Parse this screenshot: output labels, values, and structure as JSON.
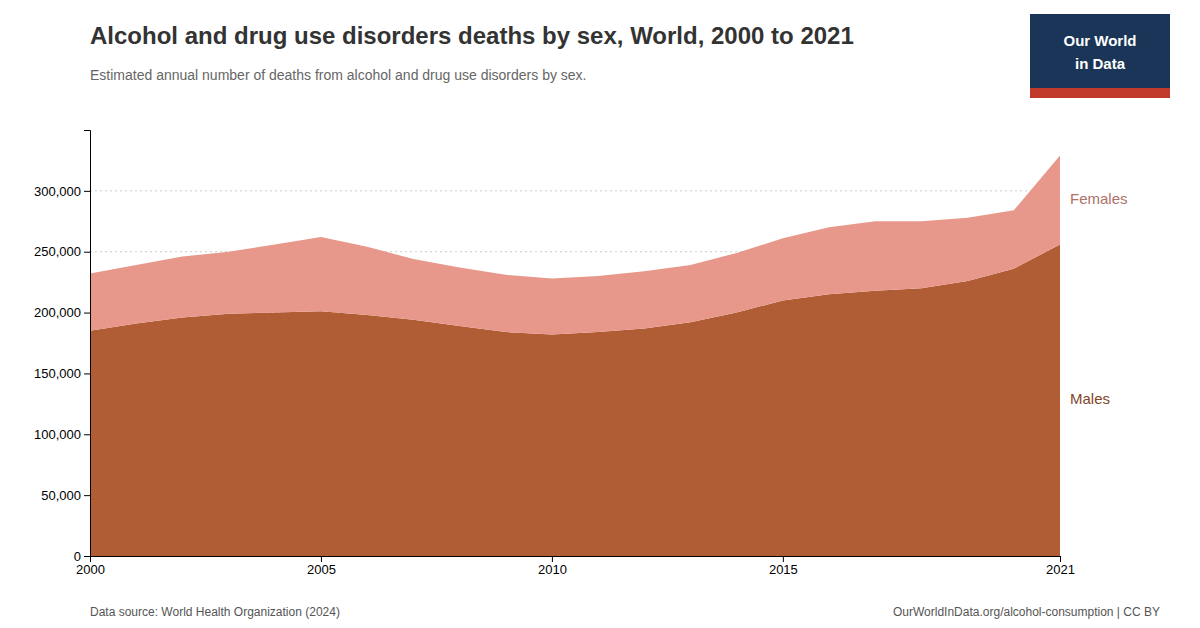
{
  "chart_data": {
    "type": "area",
    "stacked": true,
    "title": "Alcohol and drug use disorders deaths by sex, World, 2000 to 2021",
    "subtitle": "Estimated annual number of deaths from alcohol and drug use disorders by sex.",
    "annotations": [
      "Data source: World Health Organization (2024)",
      "OurWorldInData.org/alcohol-consumption | CC BY",
      "Our World",
      "in Data"
    ],
    "x": [
      2000,
      2001,
      2002,
      2003,
      2004,
      2005,
      2006,
      2007,
      2008,
      2009,
      2010,
      2011,
      2012,
      2013,
      2014,
      2015,
      2016,
      2017,
      2018,
      2019,
      2020,
      2021
    ],
    "series": [
      {
        "name": "Males",
        "color": "#b05c34",
        "values": [
          185000,
          191000,
          196000,
          199000,
          200000,
          201000,
          198000,
          194000,
          189000,
          184000,
          182000,
          184000,
          187000,
          192000,
          200000,
          210000,
          215000,
          218000,
          220000,
          226000,
          236000,
          256000
        ]
      },
      {
        "name": "Females",
        "color": "#e8988a",
        "values": [
          47000,
          48000,
          50000,
          51000,
          56000,
          61000,
          56000,
          50000,
          48000,
          47000,
          46000,
          46000,
          47000,
          47000,
          49000,
          51000,
          55000,
          57000,
          55000,
          52000,
          48000,
          73000
        ]
      }
    ],
    "xlim": [
      2000,
      2021
    ],
    "xticks": [
      2000,
      2005,
      2010,
      2015,
      2021
    ],
    "ylim": [
      0,
      350000
    ],
    "yticks": [
      0,
      {
        "value": 50000,
        "label": "50,000"
      },
      {
        "value": 100000,
        "label": "100,000"
      },
      {
        "value": 150000,
        "label": "150,000"
      },
      {
        "value": 200000,
        "label": "200,000"
      },
      {
        "value": 250000,
        "label": "250,000"
      },
      {
        "value": 300000,
        "label": "300,000"
      }
    ],
    "grid": true
  }
}
